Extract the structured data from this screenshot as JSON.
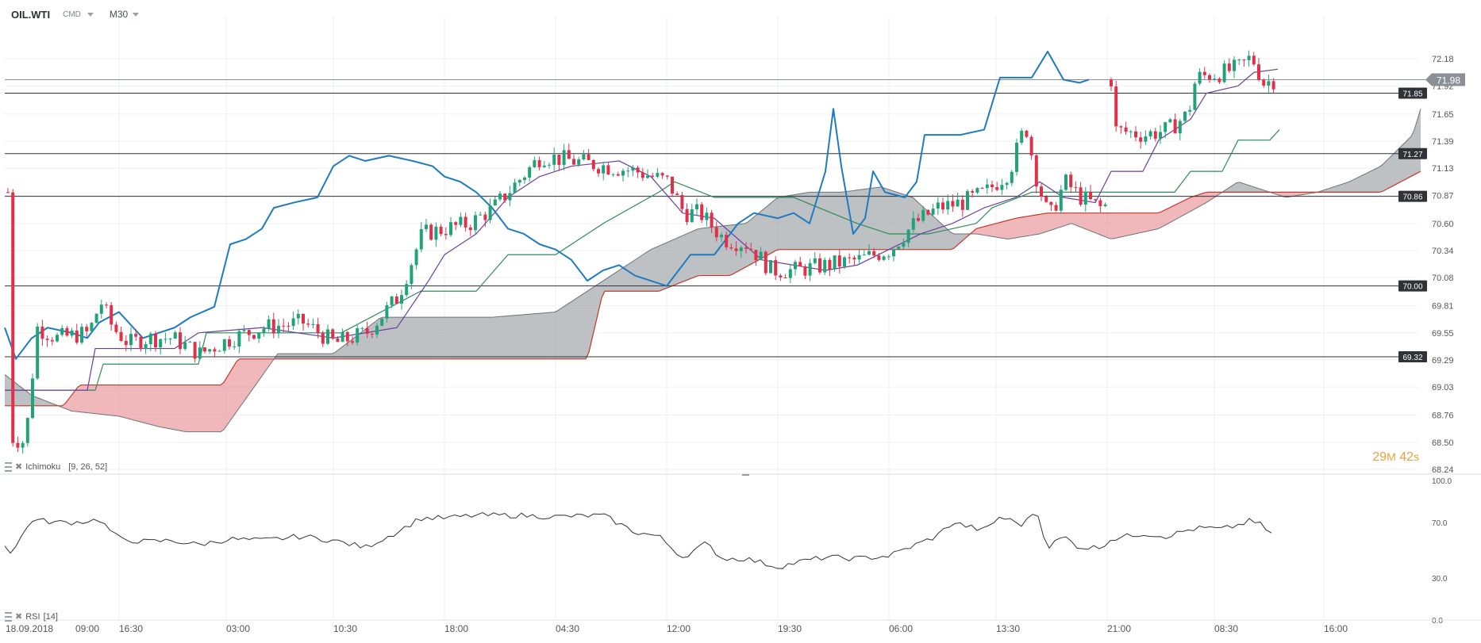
{
  "toolbar": {
    "symbol": "OIL.WTI",
    "market": "CMD",
    "timeframe": "M30"
  },
  "indicators": {
    "ichimoku": {
      "name": "Ichimoku",
      "params": "[9, 26, 52]"
    },
    "rsi": {
      "name": "RSI",
      "params": "[14]"
    }
  },
  "countdown": {
    "minutes": "29",
    "m_unit": "M",
    "seconds": "42",
    "s_unit": "s"
  },
  "price_axis": {
    "ticks": [
      "72.18",
      "71.92",
      "71.65",
      "71.39",
      "71.13",
      "70.87",
      "70.60",
      "70.34",
      "70.08",
      "69.81",
      "69.55",
      "69.29",
      "69.03",
      "68.76",
      "68.50",
      "68.24"
    ],
    "range": [
      68.24,
      72.44
    ]
  },
  "rsi_axis": {
    "ticks": [
      "100.0",
      "70.0",
      "30.0",
      "0.0"
    ]
  },
  "time_axis": {
    "labels": [
      "18.09.2018",
      "09:00",
      "16:30",
      "03:00",
      "10:30",
      "18:00",
      "04:30",
      "12:00",
      "19:30",
      "06:00",
      "13:30",
      "21:00",
      "08:30",
      "16:00"
    ]
  },
  "current_price": "71.98",
  "levels": [
    "71.85",
    "71.27",
    "70.86",
    "70.00",
    "69.32"
  ],
  "colors": {
    "up_candle": "#21a37a",
    "down_candle": "#e0314b",
    "price_line": "#1f7bc1",
    "tenkan": "#6b3fa0",
    "kijun": "#2e8b57",
    "cloud_gray": "#9b9fa3",
    "cloud_red": "#e8888f",
    "senkou_b": "#c0392b",
    "rsi_line": "#333333",
    "level_tag": "#2f3338"
  }
}
